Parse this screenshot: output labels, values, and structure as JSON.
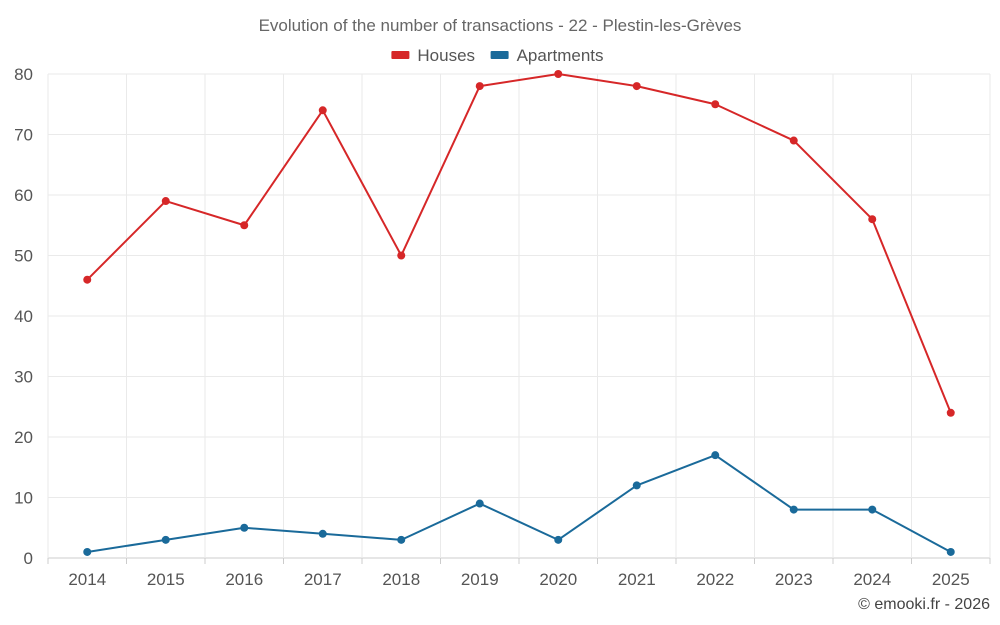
{
  "chart_data": {
    "type": "line",
    "title": "Evolution of the number of transactions - 22 - Plestin-les-Grèves",
    "categories": [
      "2014",
      "2015",
      "2016",
      "2017",
      "2018",
      "2019",
      "2020",
      "2021",
      "2022",
      "2023",
      "2024",
      "2025"
    ],
    "series": [
      {
        "name": "Houses",
        "color": "#d62728",
        "values": [
          46,
          59,
          55,
          74,
          50,
          78,
          80,
          78,
          75,
          69,
          56,
          24
        ]
      },
      {
        "name": "Apartments",
        "color": "#1a6a9a",
        "values": [
          1,
          3,
          5,
          4,
          3,
          9,
          3,
          12,
          17,
          8,
          8,
          1
        ]
      }
    ],
    "ylim": [
      0,
      80
    ],
    "yticks": [
      0,
      10,
      20,
      30,
      40,
      50,
      60,
      70,
      80
    ],
    "grid": true,
    "legend": "top-center",
    "xlabel": "",
    "ylabel": ""
  },
  "credit": "© emooki.fr - 2026"
}
